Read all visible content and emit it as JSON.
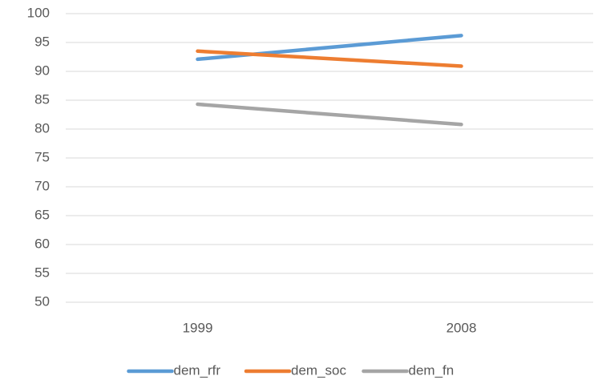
{
  "chart_data": {
    "type": "line",
    "categories": [
      "1999",
      "2008"
    ],
    "series": [
      {
        "name": "dem_rfr",
        "color": "#5b9bd5",
        "values": [
          92.1,
          96.2
        ]
      },
      {
        "name": "dem_soc",
        "color": "#ed7d31",
        "values": [
          93.5,
          90.9
        ]
      },
      {
        "name": "dem_fn",
        "color": "#a5a5a5",
        "values": [
          84.3,
          80.8
        ]
      }
    ],
    "ylim": [
      50,
      100
    ],
    "yticks": [
      50,
      55,
      60,
      65,
      70,
      75,
      80,
      85,
      90,
      95,
      100
    ],
    "grid": true,
    "legend": "bottom"
  }
}
